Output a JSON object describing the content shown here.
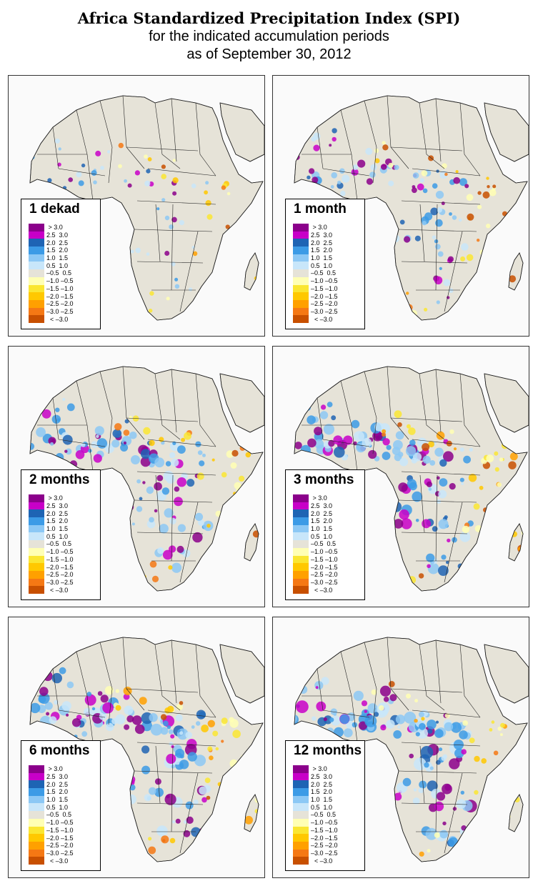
{
  "title": {
    "line1": "Africa Standardized Precipitation Index (SPI)",
    "line2": "for the indicated accumulation periods",
    "line3": "as of September 30, 2012"
  },
  "colors": {
    "ocean": "#fafafa",
    "land": "#e6e3d8",
    "border": "#222222"
  },
  "legend": {
    "labels": [
      " > 3.0",
      "2.5  3.0",
      "2.0  2.5",
      "1.5  2.0",
      "1.0  1.5",
      "0.5  1.0",
      "–0.5  0.5",
      "–1.0 –0.5",
      "–1.5 –1.0",
      "–2.0 –1.5",
      "–2.5 –2.0",
      "–3.0 –2.5",
      "  < –3.0"
    ],
    "colors": [
      "#8b008b",
      "#c800c8",
      "#1e64b4",
      "#3c9be6",
      "#8cc8f5",
      "#c8e6fa",
      "#e6e3d8",
      "#ffffb4",
      "#fae632",
      "#ffc800",
      "#ffa000",
      "#f57814",
      "#c85000"
    ]
  },
  "panels": [
    {
      "label": "1 dekad",
      "wet": 0.3,
      "dry": 0.35
    },
    {
      "label": "1 month",
      "wet": 0.55,
      "dry": 0.45
    },
    {
      "label": "2 months",
      "wet": 0.75,
      "dry": 0.5
    },
    {
      "label": "3 months",
      "wet": 0.85,
      "dry": 0.55
    },
    {
      "label": "6 months",
      "wet": 0.9,
      "dry": 0.6
    },
    {
      "label": "12 months",
      "wet": 1.0,
      "dry": 0.35
    }
  ]
}
